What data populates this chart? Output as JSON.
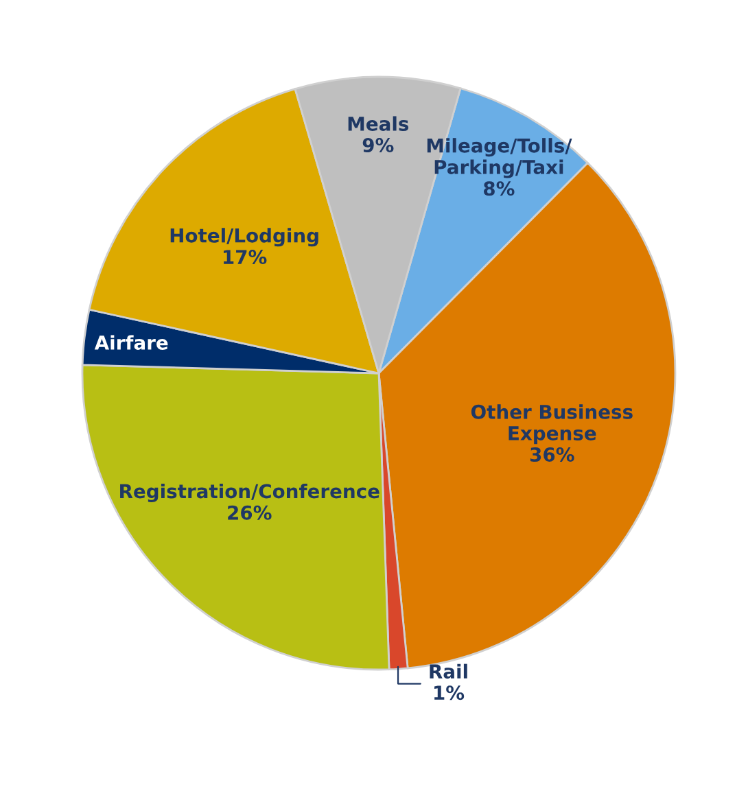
{
  "chart_data": {
    "type": "pie",
    "categories": [
      "Mileage/Tolls/\nParking/Taxi",
      "Other Business\nExpense",
      "Rail",
      "Registration/Conference",
      "Airfare",
      "Hotel/Lodging",
      "Meals"
    ],
    "values": [
      8,
      36,
      1,
      26,
      3,
      17,
      9
    ],
    "value_labels": [
      "8%",
      "36%",
      "1%",
      "26%",
      null,
      "17%",
      "9%"
    ],
    "colors": [
      "#6aaee6",
      "#dd7b00",
      "#d9472b",
      "#b8bf14",
      "#002d6a",
      "#ddaa00",
      "#bfbfbf"
    ]
  }
}
